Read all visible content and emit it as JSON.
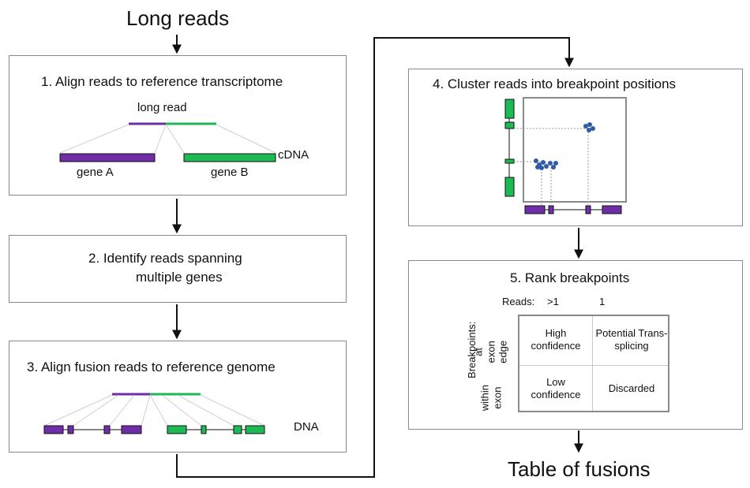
{
  "colors": {
    "purple": "#6f2da8",
    "green": "#1db954",
    "arrow": "#111111",
    "dot": "#2f5ba8",
    "border": "#8a8a8a"
  },
  "header": {
    "title": "Long reads"
  },
  "footer": {
    "title": "Table of fusions"
  },
  "step1": {
    "title": "1. Align reads to reference transcriptome",
    "read_label": "long read",
    "cdna_label": "cDNA",
    "gene_a": "gene A",
    "gene_b": "gene B"
  },
  "step2": {
    "title_line1": "2. Identify reads spanning",
    "title_line2": "multiple genes"
  },
  "step3": {
    "title": "3. Align fusion reads to reference genome",
    "dna_label": "DNA"
  },
  "step4": {
    "title": "4. Cluster reads into breakpoint positions"
  },
  "step5": {
    "title": "5. Rank breakpoints",
    "reads_label": "Reads:",
    "col_gt1": ">1",
    "col_1": "1",
    "breakpoints_label": "Breakpoints:",
    "row_exon_edge": "at exon edge",
    "row_within_exon": "within exon",
    "cell_high": "High confidence",
    "cell_potential": "Potential Trans-splicing",
    "cell_low": "Low confidence",
    "cell_discarded": "Discarded"
  }
}
